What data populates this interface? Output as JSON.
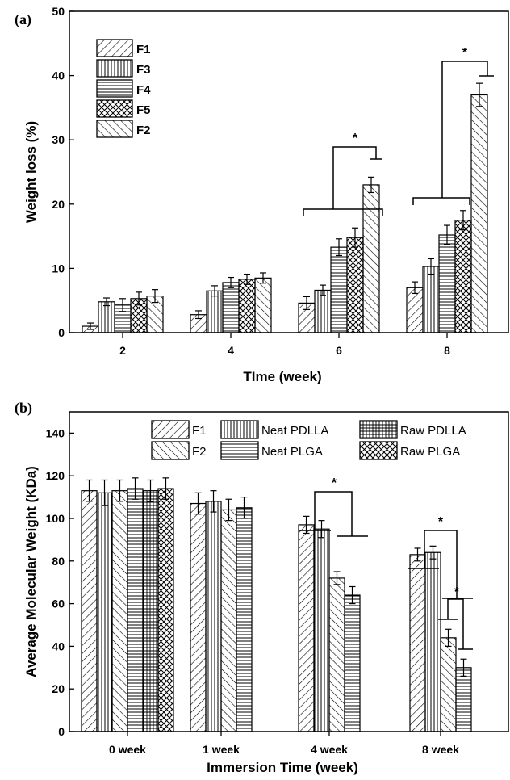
{
  "chart_data": [
    {
      "type": "bar",
      "panel_label": "(a)",
      "xlabel": "TIme (week)",
      "ylabel": "Weight loss (%)",
      "ylim": [
        0,
        50
      ],
      "yticks": [
        0,
        10,
        20,
        30,
        40,
        50
      ],
      "categories": [
        "2",
        "4",
        "6",
        "8"
      ],
      "legend_placement": "top-left",
      "series": [
        {
          "name": "F1",
          "pattern": "diag-up",
          "values": [
            1.0,
            2.8,
            4.6,
            7.0
          ],
          "errors": [
            0.5,
            0.6,
            1.0,
            0.9
          ]
        },
        {
          "name": "F3",
          "pattern": "vertical",
          "values": [
            4.8,
            6.5,
            6.6,
            10.3
          ],
          "errors": [
            0.6,
            0.8,
            0.8,
            1.2
          ]
        },
        {
          "name": "F4",
          "pattern": "horizontal",
          "values": [
            4.3,
            7.8,
            13.3,
            15.2
          ],
          "errors": [
            1.0,
            0.8,
            1.3,
            1.5
          ]
        },
        {
          "name": "F5",
          "pattern": "crosshatch",
          "values": [
            5.3,
            8.3,
            14.8,
            17.5
          ],
          "errors": [
            1.0,
            0.8,
            1.5,
            1.5
          ]
        },
        {
          "name": "F2",
          "pattern": "diag-down",
          "values": [
            5.7,
            8.5,
            23.0,
            37.0
          ],
          "errors": [
            1.0,
            0.8,
            1.2,
            1.8
          ]
        }
      ],
      "annotations": [
        {
          "text": "*",
          "category": "6"
        },
        {
          "text": "*",
          "category": "8"
        }
      ]
    },
    {
      "type": "bar",
      "panel_label": "(b)",
      "xlabel": "Immersion Time (week)",
      "ylabel": "Average Molecular Weight (KDa)",
      "ylim": [
        0,
        150
      ],
      "yticks": [
        0,
        20,
        40,
        60,
        80,
        100,
        120,
        140
      ],
      "categories": [
        "0 week",
        "1 week",
        "4 week",
        "8 week"
      ],
      "legend_placement": "top",
      "series": [
        {
          "name": "F1",
          "pattern": "diag-up",
          "values": [
            113,
            107,
            97,
            83
          ],
          "errors": [
            5,
            5,
            4,
            3
          ]
        },
        {
          "name": "Neat PDLLA",
          "pattern": "vertical",
          "values": [
            112,
            108,
            95,
            84
          ],
          "errors": [
            6,
            5,
            4,
            3
          ]
        },
        {
          "name": "F2",
          "pattern": "diag-down",
          "values": [
            113,
            104,
            72,
            44
          ],
          "errors": [
            5,
            5,
            3,
            4
          ]
        },
        {
          "name": "Neat PLGA",
          "pattern": "horizontal",
          "values": [
            114,
            105,
            64,
            30
          ],
          "errors": [
            5,
            5,
            4,
            4
          ]
        },
        {
          "name": "Raw PDLLA",
          "pattern": "grid",
          "values": [
            113,
            null,
            null,
            null
          ],
          "errors": [
            5,
            null,
            null,
            null
          ]
        },
        {
          "name": "Raw PLGA",
          "pattern": "crosshatch",
          "values": [
            114,
            null,
            null,
            null
          ],
          "errors": [
            5,
            null,
            null,
            null
          ]
        }
      ],
      "annotations": [
        {
          "text": "*",
          "category": "4 week"
        },
        {
          "text": "*",
          "category": "8 week"
        },
        {
          "text": "*",
          "category": "8 week"
        }
      ]
    }
  ]
}
